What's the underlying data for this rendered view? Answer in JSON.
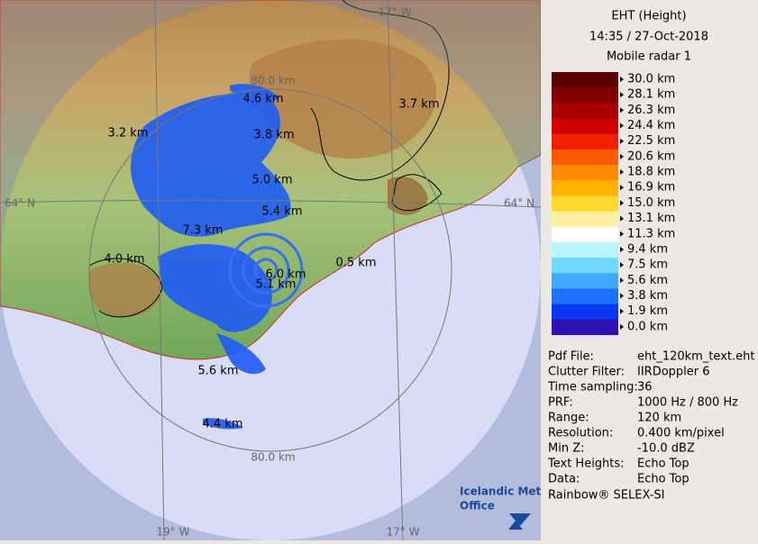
{
  "header": {
    "title": "EHT (Height)",
    "time": "14:35 / 27-Oct-2018",
    "radar": "Mobile radar 1"
  },
  "legend": {
    "labels": [
      "30.0 km",
      "28.1 km",
      "26.3 km",
      "24.4 km",
      "22.5 km",
      "20.6 km",
      "18.8 km",
      "16.9 km",
      "15.0 km",
      "13.1 km",
      "11.3 km",
      "9.4 km",
      "7.5 km",
      "5.6 km",
      "3.8 km",
      "1.9 km",
      "0.0 km"
    ],
    "colors": [
      "#5a0000",
      "#800000",
      "#a80000",
      "#d00000",
      "#f02000",
      "#ff5a00",
      "#ff8c00",
      "#ffb400",
      "#ffd830",
      "#fff0a0",
      "#ffffff",
      "#b8f4ff",
      "#70d8ff",
      "#40a8ff",
      "#1e70ff",
      "#0838f0",
      "#3010b0"
    ]
  },
  "info": [
    [
      "Pdf File:",
      "eht_120km_text.eht"
    ],
    [
      "Clutter Filter:",
      "IIRDoppler 6"
    ],
    [
      "Time sampling:",
      "36"
    ],
    [
      "PRF:",
      "1000 Hz / 800 Hz"
    ],
    [
      "Range:",
      "120 km"
    ],
    [
      "Resolution:",
      "0.400 km/pixel"
    ],
    [
      "Min Z:",
      "-10.0 dBZ"
    ],
    [
      "Text Heights:",
      "Echo Top"
    ],
    [
      "Data:",
      "Echo Top"
    ]
  ],
  "footer": "Rainbow® SELEX-SI",
  "map": {
    "grid_labels": [
      "17° W",
      "64° N",
      "64° N",
      "19° W",
      "17° W"
    ],
    "range_labels": [
      "80.0 km",
      "80.0 km"
    ],
    "heights": [
      "4.6 km",
      "3.7 km",
      "3.2 km",
      "3.8 km",
      "5.0 km",
      "5.4 km",
      "7.3 km",
      "4.0 km",
      "6.0 km",
      "0.5 km",
      "5.1 km",
      "5.6 km",
      "4.4 km"
    ],
    "logo": [
      "Icelandic Met",
      "Office"
    ]
  }
}
